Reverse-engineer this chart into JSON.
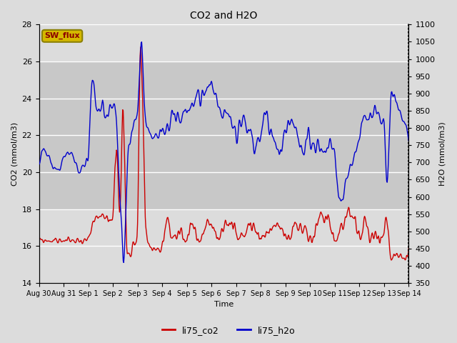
{
  "title": "CO2 and H2O",
  "xlabel": "Time",
  "ylabel_left": "CO2 (mmol/m3)",
  "ylabel_right": "H2O (mmol/m3)",
  "ylim_left": [
    14,
    28
  ],
  "ylim_right": [
    350,
    1100
  ],
  "yticks_left": [
    14,
    16,
    18,
    20,
    22,
    24,
    26,
    28
  ],
  "yticks_right": [
    350,
    400,
    450,
    500,
    550,
    600,
    650,
    700,
    750,
    800,
    850,
    900,
    950,
    1000,
    1050,
    1100
  ],
  "xtick_labels": [
    "Aug 30",
    "Aug 31",
    "Sep 1",
    "Sep 2",
    "Sep 3",
    "Sep 4",
    "Sep 5",
    "Sep 6",
    "Sep 7",
    "Sep 8",
    "Sep 9",
    "Sep 10",
    "Sep 11",
    "Sep 12",
    "Sep 13",
    "Sep 14"
  ],
  "co2_color": "#cc0000",
  "h2o_color": "#0000cc",
  "legend_co2": "li75_co2",
  "legend_h2o": "li75_h2o",
  "sw_flux_label": "SW_flux",
  "sw_flux_bg": "#d4b800",
  "background_color": "#dcdcdc",
  "shaded_band_color": "#c8c8c8",
  "grid_color": "#ffffff",
  "right_axis_linestyle": "dotted"
}
